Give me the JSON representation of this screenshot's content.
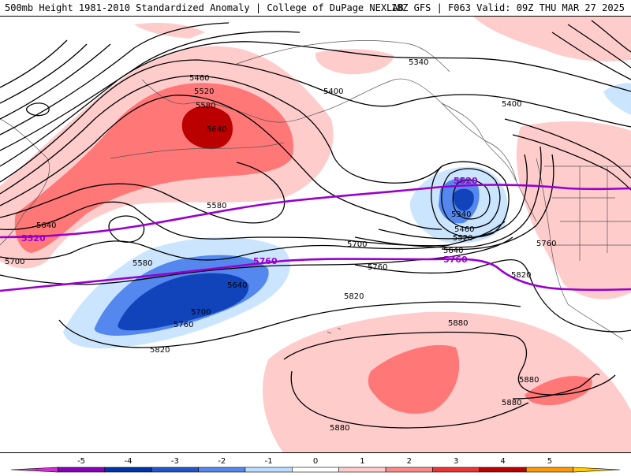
{
  "header": {
    "left_title": "500mb Height 1981-2010 Standardized Anomaly | College of DuPage NEXLAB",
    "right_title": "18Z GFS | F063 Valid: 09Z THU MAR 27 2025"
  },
  "contour_labels": [
    {
      "id": "l5460a",
      "text": "5460"
    },
    {
      "id": "l5520a",
      "text": "5520"
    },
    {
      "id": "l5580a",
      "text": "5580"
    },
    {
      "id": "l5640a",
      "text": "5640"
    },
    {
      "id": "l5340a",
      "text": "5340"
    },
    {
      "id": "l5400a",
      "text": "5400"
    },
    {
      "id": "l5400b",
      "text": "5400"
    },
    {
      "id": "l5580b",
      "text": "5580"
    },
    {
      "id": "l5640b",
      "text": "5640"
    },
    {
      "id": "l5700a",
      "text": "5700"
    },
    {
      "id": "l5580c",
      "text": "5580"
    },
    {
      "id": "l5640c",
      "text": "5640"
    },
    {
      "id": "l5700b",
      "text": "5700"
    },
    {
      "id": "l5760a",
      "text": "5760"
    },
    {
      "id": "l5820a",
      "text": "5820"
    },
    {
      "id": "l5700c",
      "text": "5700"
    },
    {
      "id": "l5760b",
      "text": "5760"
    },
    {
      "id": "l5820b",
      "text": "5820"
    },
    {
      "id": "l5340b",
      "text": "5340"
    },
    {
      "id": "l5460b",
      "text": "5460"
    },
    {
      "id": "l5520b",
      "text": "5520"
    },
    {
      "id": "l5640d",
      "text": "5640"
    },
    {
      "id": "l5760c",
      "text": "5760"
    },
    {
      "id": "l5820c",
      "text": "5820"
    },
    {
      "id": "l5880a",
      "text": "5880"
    },
    {
      "id": "l5880b",
      "text": "5880"
    },
    {
      "id": "l5880c",
      "text": "5880"
    },
    {
      "id": "l5880d",
      "text": "5880"
    }
  ],
  "purple_labels": [
    {
      "id": "p5520a",
      "text": "5520"
    },
    {
      "id": "p5520b",
      "text": "5520"
    },
    {
      "id": "p5760a",
      "text": "5760"
    },
    {
      "id": "p5760b",
      "text": "5760"
    }
  ],
  "colorbar": {
    "ticks": [
      "-5",
      "-4",
      "-3",
      "-2",
      "-1",
      "0",
      "1",
      "2",
      "3",
      "4",
      "5"
    ],
    "colors": [
      "#cc33cc",
      "#8800bb",
      "#0033aa",
      "#2255cc",
      "#5588ee",
      "#bbddff",
      "#ffffff",
      "#ffcccc",
      "#ff8888",
      "#ee3333",
      "#bb0000",
      "#ff9900",
      "#ffcc00"
    ]
  },
  "colors": {
    "purple_contour": "#9900cc",
    "strong_positive": "#bb0000",
    "positive": "#ff7777",
    "weak_positive": "#ffcccc",
    "weak_negative": "#cce5ff",
    "negative": "#5588ee",
    "strong_negative": "#1144bb"
  }
}
